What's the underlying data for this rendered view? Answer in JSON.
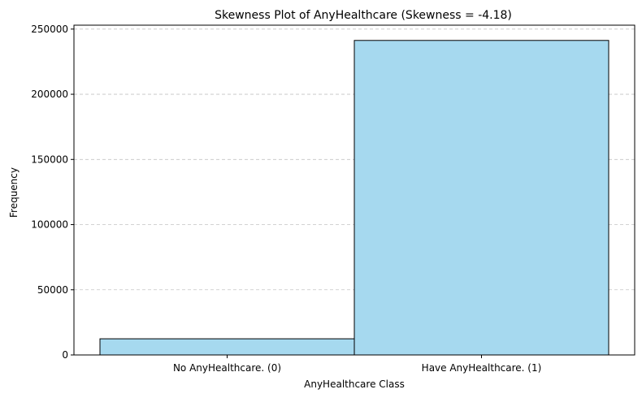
{
  "chart_data": {
    "type": "bar",
    "title": "Skewness Plot of AnyHealthcare (Skewness = -4.18)",
    "xlabel": "AnyHealthcare Class",
    "ylabel": "Frequency",
    "categories": [
      "No AnyHealthcare. (0)",
      "Have AnyHealthcare. (1)"
    ],
    "values": [
      12400,
      241300
    ],
    "ylim": [
      0,
      253000
    ],
    "yticks": [
      0,
      50000,
      100000,
      150000,
      200000,
      250000
    ],
    "grid": "y-dashed",
    "bar_color": "#a6d9ef",
    "edge_color": "#000000"
  }
}
